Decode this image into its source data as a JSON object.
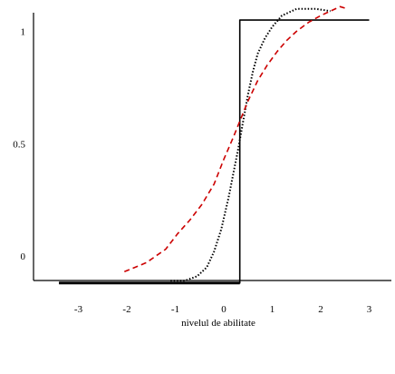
{
  "chart_data": {
    "type": "line",
    "title": "",
    "xlabel": "nivelul de abilitate",
    "ylabel": "",
    "x_ticks": [
      -3,
      -2,
      -1,
      0,
      1,
      2,
      3
    ],
    "x_tick_labels": [
      "-3",
      "-2",
      "-1",
      "0",
      "1",
      "2",
      "3"
    ],
    "y_ticks": [
      0,
      0.5,
      1
    ],
    "y_tick_labels": [
      "0",
      "0.5",
      "1"
    ],
    "xlim": [
      -3.6,
      3.6
    ],
    "ylim": [
      -0.12,
      1.08
    ],
    "grid": false,
    "legend": null,
    "series": [
      {
        "style": "solid",
        "color": "#000000",
        "x": [
          -3.4,
          0.33,
          0.33,
          3.0
        ],
        "y": [
          -0.12,
          -0.12,
          1.05,
          1.05
        ]
      },
      {
        "style": "dotted",
        "color": "#000000",
        "x": [
          -1.1,
          -0.8,
          -0.55,
          -0.35,
          -0.2,
          -0.05,
          0.1,
          0.2,
          0.3,
          0.4,
          0.5,
          0.6,
          0.7,
          0.85,
          1.0,
          1.2,
          1.5,
          1.9,
          2.2
        ],
        "y": [
          -0.11,
          -0.11,
          -0.09,
          -0.05,
          0.02,
          0.12,
          0.26,
          0.37,
          0.48,
          0.6,
          0.72,
          0.82,
          0.9,
          0.97,
          1.02,
          1.07,
          1.1,
          1.1,
          1.09
        ]
      },
      {
        "style": "dashed",
        "color": "#cc0000",
        "x": [
          -2.05,
          -1.6,
          -1.2,
          -0.95,
          -0.7,
          -0.45,
          -0.2,
          0.0,
          0.2,
          0.33,
          0.5,
          0.7,
          0.9,
          1.1,
          1.3,
          1.5,
          1.75,
          2.0,
          2.2,
          2.4,
          2.55
        ],
        "y": [
          -0.07,
          -0.03,
          0.03,
          0.1,
          0.16,
          0.23,
          0.32,
          0.43,
          0.53,
          0.6,
          0.69,
          0.78,
          0.85,
          0.91,
          0.96,
          1.0,
          1.04,
          1.07,
          1.09,
          1.11,
          1.1
        ]
      }
    ]
  }
}
